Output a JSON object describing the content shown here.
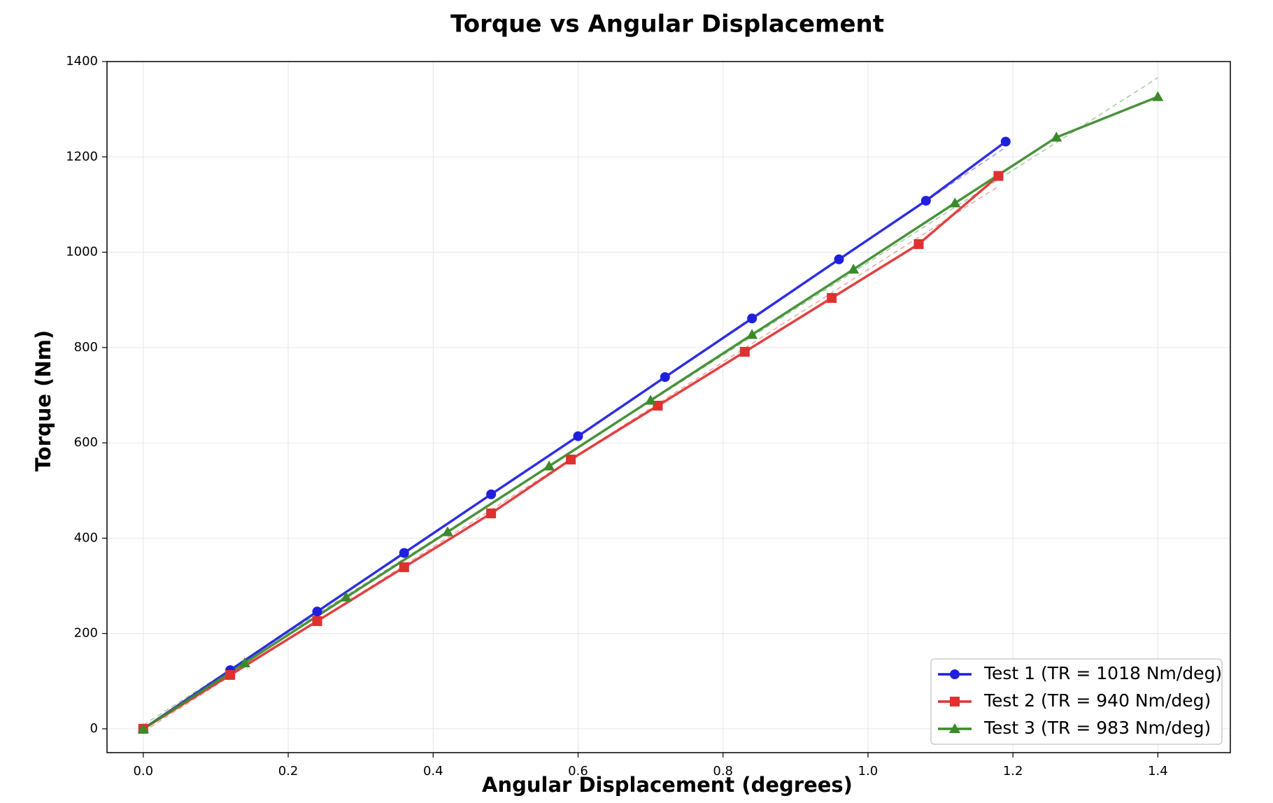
{
  "chart_data": {
    "type": "line",
    "title": "Torque vs Angular Displacement",
    "xlabel": "Angular Displacement (degrees)",
    "ylabel": "Torque (Nm)",
    "xlim": [
      -0.05,
      1.5
    ],
    "ylim": [
      -50,
      1400
    ],
    "xticks": [
      0.0,
      0.2,
      0.4,
      0.6,
      0.8,
      1.0,
      1.2,
      1.4
    ],
    "xtick_labels": [
      "0.0",
      "0.2",
      "0.4",
      "0.6",
      "0.8",
      "1.0",
      "1.2",
      "1.4"
    ],
    "yticks": [
      0,
      200,
      400,
      600,
      800,
      1000,
      1200,
      1400
    ],
    "ytick_labels": [
      "0",
      "200",
      "400",
      "600",
      "800",
      "1000",
      "1200",
      "1400"
    ],
    "grid": true,
    "legend_position": "bottom-right",
    "series": [
      {
        "name": "Test 1 (TR = 1018 Nm/deg)",
        "color": "#1f1fe0",
        "marker": "circle",
        "x": [
          0.0,
          0.12,
          0.24,
          0.36,
          0.48,
          0.6,
          0.72,
          0.84,
          0.96,
          1.08,
          1.19
        ],
        "y": [
          0,
          123,
          246,
          369,
          492,
          614,
          738,
          861,
          985,
          1108,
          1232
        ],
        "fit": {
          "x": [
            0.0,
            1.19
          ],
          "y": [
            0,
            1220
          ]
        }
      },
      {
        "name": "Test 2 (TR = 940 Nm/deg)",
        "color": "#e03030",
        "marker": "square",
        "x": [
          0.0,
          0.12,
          0.24,
          0.36,
          0.48,
          0.59,
          0.71,
          0.83,
          0.95,
          1.07,
          1.18
        ],
        "y": [
          0,
          113,
          226,
          339,
          452,
          565,
          678,
          791,
          904,
          1017,
          1160
        ],
        "fit": {
          "x": [
            0.0,
            1.18
          ],
          "y": [
            -6,
            1138
          ]
        }
      },
      {
        "name": "Test 3 (TR = 983 Nm/deg)",
        "color": "#3a8a2a",
        "marker": "triangle",
        "x": [
          0.0,
          0.14,
          0.28,
          0.42,
          0.56,
          0.7,
          0.84,
          0.98,
          1.12,
          1.26,
          1.4
        ],
        "y": [
          0,
          138,
          276,
          413,
          551,
          689,
          827,
          964,
          1103,
          1241,
          1326
        ],
        "fit": {
          "x": [
            0.0,
            1.4
          ],
          "y": [
            8,
            1366
          ]
        }
      }
    ]
  }
}
